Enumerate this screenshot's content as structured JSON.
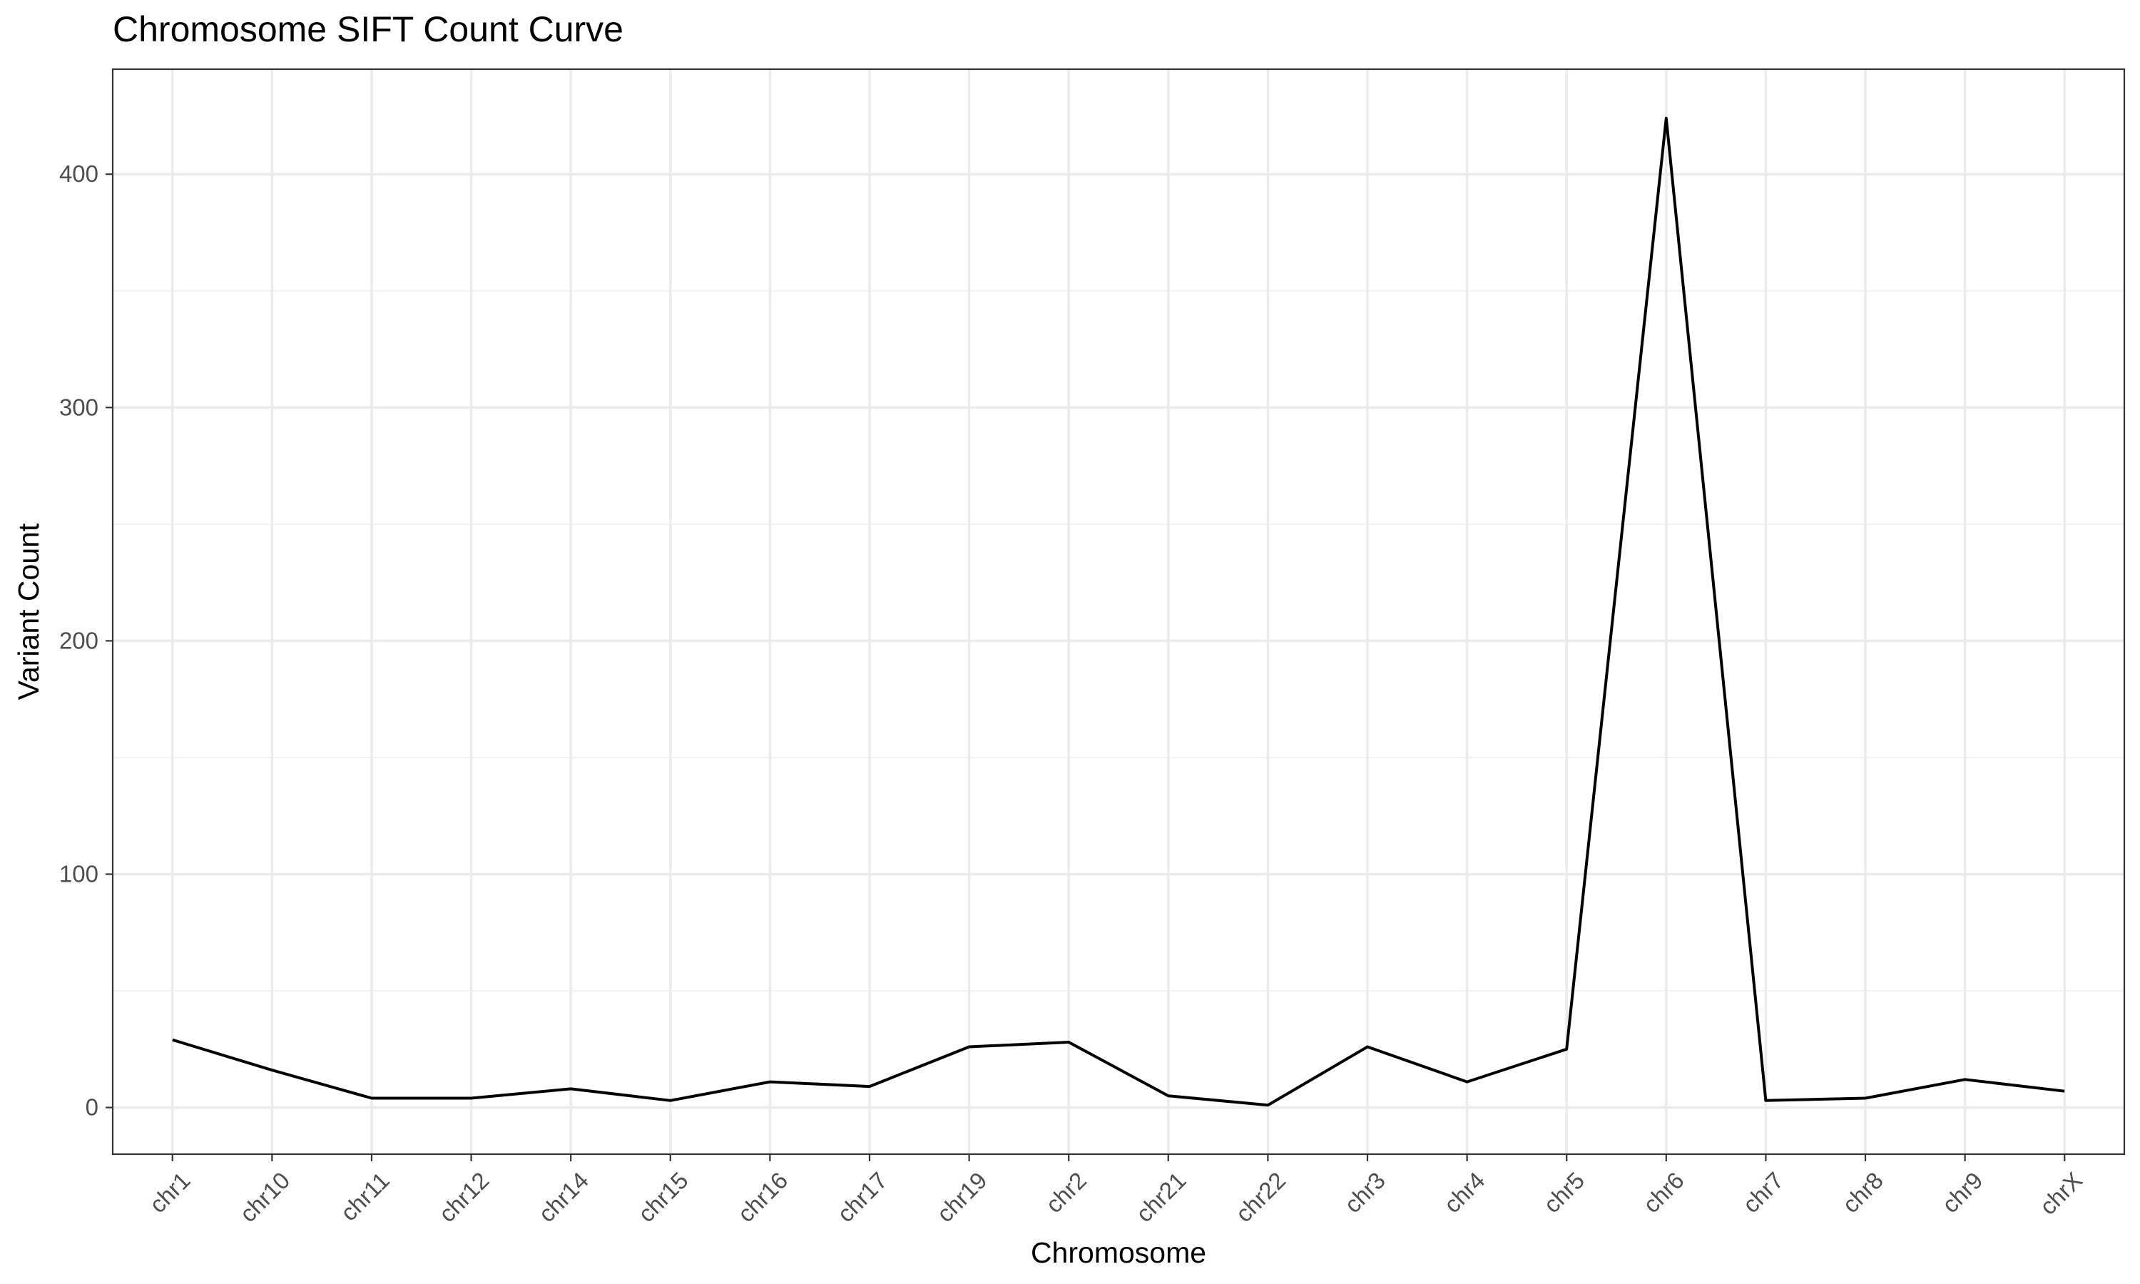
{
  "chart_data": {
    "type": "line",
    "title": "Chromosome SIFT Count Curve",
    "xlabel": "Chromosome",
    "ylabel": "Variant Count",
    "categories": [
      "chr1",
      "chr10",
      "chr11",
      "chr12",
      "chr14",
      "chr15",
      "chr16",
      "chr17",
      "chr19",
      "chr2",
      "chr21",
      "chr22",
      "chr3",
      "chr4",
      "chr5",
      "chr6",
      "chr7",
      "chr8",
      "chr9",
      "chrX"
    ],
    "series": [
      {
        "values": [
          29,
          16,
          4,
          4,
          8,
          3,
          11,
          9,
          26,
          28,
          5,
          1,
          26,
          11,
          25,
          424,
          3,
          4,
          12,
          7
        ]
      }
    ],
    "ylim": [
      -20,
      445
    ],
    "yticks": [
      0,
      100,
      200,
      300,
      400
    ],
    "yticks_minor": [
      50,
      150,
      250,
      350
    ],
    "grid": true,
    "line_color": "#000000",
    "theme": "bw"
  }
}
